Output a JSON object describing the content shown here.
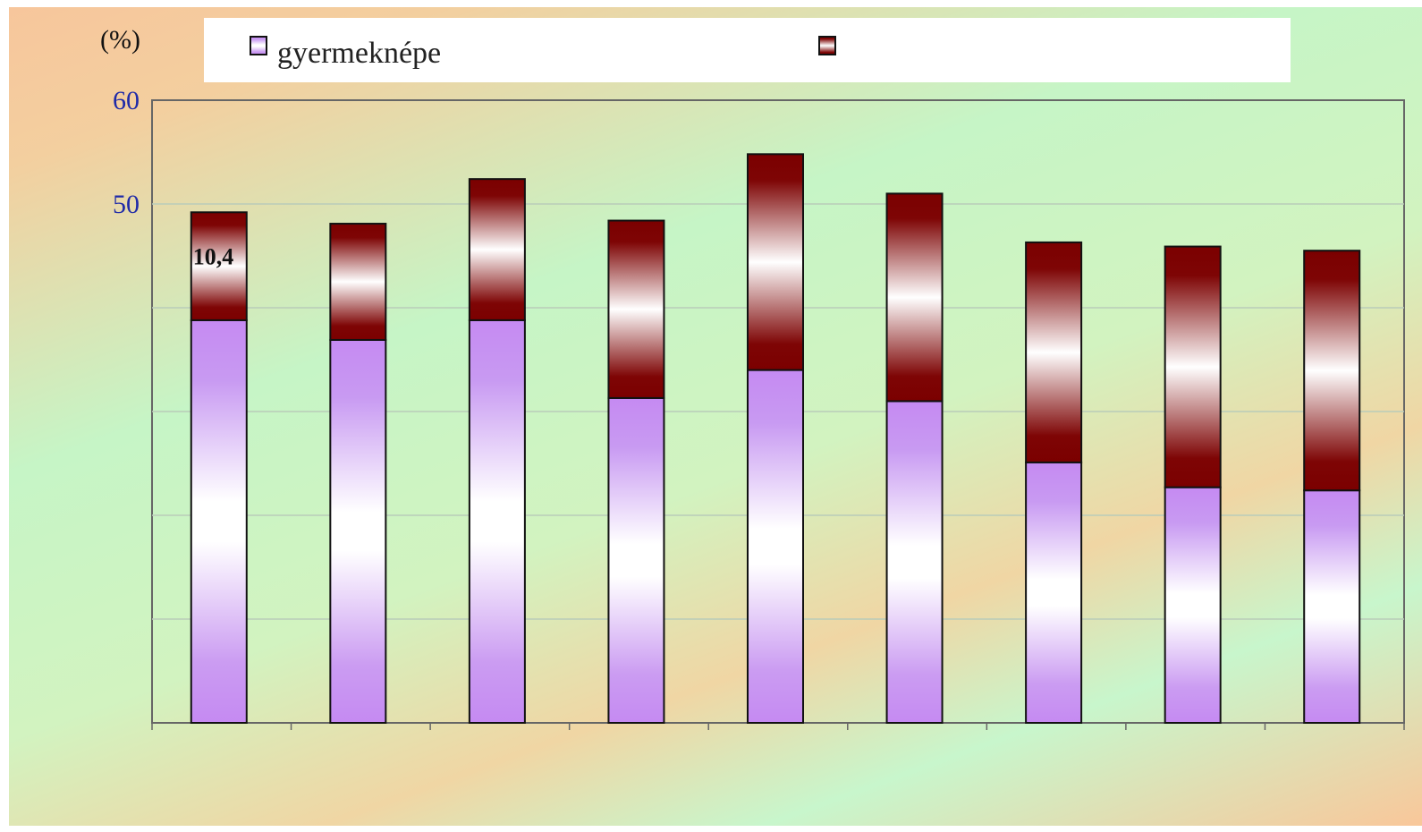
{
  "chart_data": {
    "type": "bar",
    "stacked": true,
    "ylabel": "(%)",
    "ylim": [
      0,
      60
    ],
    "yticks": [
      60,
      50
    ],
    "grid": true,
    "legend_position": "top",
    "categories": [
      "",
      "",
      "",
      "",
      "",
      "",
      "",
      "",
      ""
    ],
    "series": [
      {
        "name": "gyermeknépe",
        "color": "#c58af2",
        "values": [
          38.8,
          36.9,
          38.8,
          31.3,
          34.0,
          31.0,
          25.1,
          22.7,
          22.4
        ]
      },
      {
        "name": "",
        "color": "#7b0000",
        "values": [
          10.4,
          11.2,
          13.6,
          17.1,
          20.8,
          20.0,
          21.2,
          23.2,
          23.1
        ]
      }
    ],
    "data_labels": [
      {
        "bar": 0,
        "series": 1,
        "text": "10,4"
      }
    ]
  }
}
